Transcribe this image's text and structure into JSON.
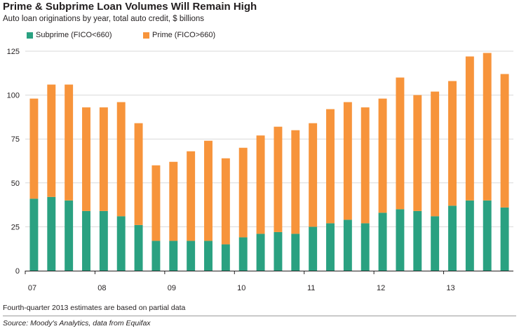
{
  "chart_data": {
    "type": "bar",
    "stacked": true,
    "title": "Prime & Subprime Loan Volumes Will Remain High",
    "subtitle": "Auto loan originations by year, total auto credit, $ billions",
    "ylim": [
      0,
      125
    ],
    "yticks": [
      0,
      25,
      50,
      75,
      100,
      125
    ],
    "x_labels": [
      "07",
      "08",
      "09",
      "10",
      "11",
      "12",
      "13"
    ],
    "x_label_indices": [
      0,
      4,
      8,
      12,
      16,
      20,
      24
    ],
    "categories": [
      "07Q1",
      "07Q2",
      "07Q3",
      "07Q4",
      "08Q1",
      "08Q2",
      "08Q3",
      "08Q4",
      "09Q1",
      "09Q2",
      "09Q3",
      "09Q4",
      "10Q1",
      "10Q2",
      "10Q3",
      "10Q4",
      "11Q1",
      "11Q2",
      "11Q3",
      "11Q4",
      "12Q1",
      "12Q2",
      "12Q3",
      "12Q4",
      "13Q1",
      "13Q2",
      "13Q3",
      "13Q4"
    ],
    "series": [
      {
        "name": "Subprime (FICO<660)",
        "color": "#2aa181",
        "values": [
          41,
          42,
          40,
          34,
          34,
          31,
          26,
          17,
          17,
          17,
          17,
          15,
          19,
          21,
          22,
          21,
          25,
          27,
          29,
          27,
          33,
          35,
          34,
          31,
          37,
          40,
          40,
          36
        ]
      },
      {
        "name": "Prime (FICO>660)",
        "color": "#f7943b",
        "values": [
          57,
          64,
          66,
          59,
          59,
          65,
          58,
          43,
          45,
          51,
          57,
          49,
          51,
          56,
          60,
          59,
          59,
          65,
          67,
          66,
          65,
          75,
          66,
          71,
          71,
          82,
          84,
          76
        ]
      }
    ],
    "grid": true,
    "legend": "top-left"
  },
  "footnote": "Fourth-quarter 2013 estimates are based on partial data",
  "source": "Source: Moody's Analytics, data from Equifax"
}
